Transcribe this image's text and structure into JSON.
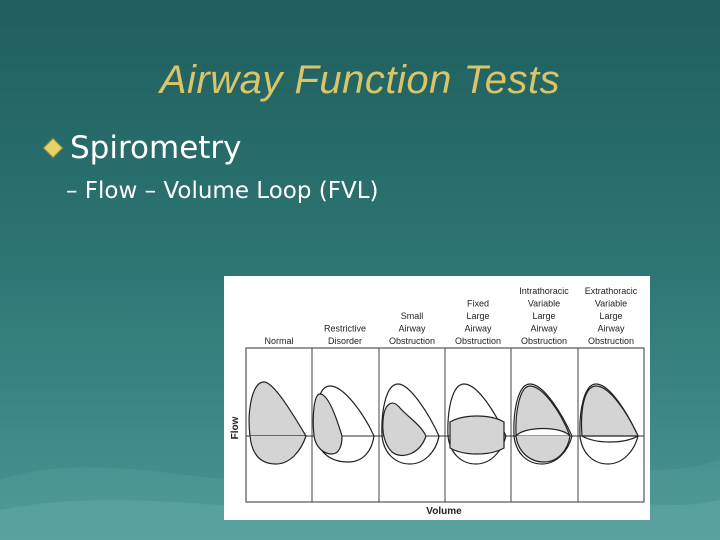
{
  "slide": {
    "title": "Airway Function Tests",
    "bullet_level1": "Spirometry",
    "bullet_level2": "– Flow – Volume Loop (FVL)"
  },
  "figure": {
    "columns": [
      {
        "lines": [
          "Normal"
        ]
      },
      {
        "lines": [
          "Restrictive",
          "Disorder"
        ]
      },
      {
        "lines": [
          "Small",
          "Airway",
          "Obstruction"
        ]
      },
      {
        "lines": [
          "Fixed",
          "Large",
          "Airway",
          "Obstruction"
        ]
      },
      {
        "lines": [
          "Intrathoracic",
          "Variable",
          "Large",
          "Airway",
          "Obstruction"
        ]
      },
      {
        "lines": [
          "Extrathoracic",
          "Variable",
          "Large",
          "Airway",
          "Obstruction"
        ]
      }
    ],
    "y_axis_label": "Flow",
    "x_axis_label": "Volume"
  },
  "colors": {
    "title": "#d9c46a",
    "text": "#ffffff",
    "loop_fill": "#d4d4d4"
  }
}
